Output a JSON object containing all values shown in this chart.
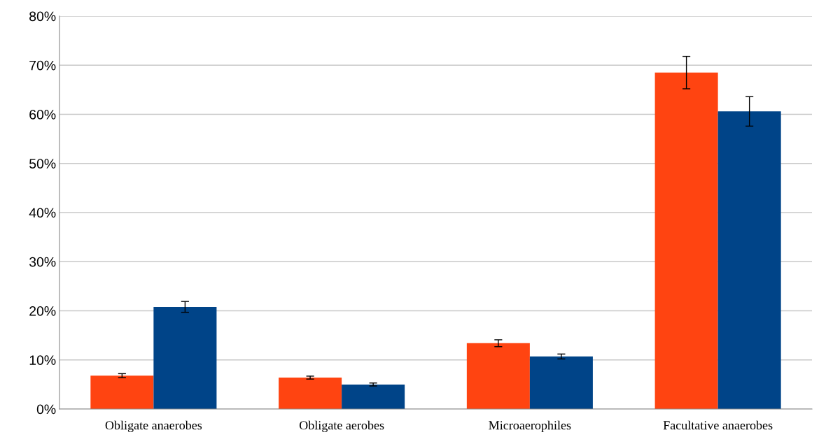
{
  "chart_data": {
    "type": "bar",
    "categories": [
      "Obligate anaerobes",
      "Obligate aerobes",
      "Microaerophiles",
      "Facultative anaerobes"
    ],
    "series": [
      {
        "color": "#ff4411",
        "values": [
          6.8,
          6.4,
          13.4,
          68.5
        ],
        "errors": [
          0.4,
          0.3,
          0.7,
          3.3
        ]
      },
      {
        "color": "#004488",
        "values": [
          20.8,
          5.0,
          10.7,
          60.6
        ],
        "errors": [
          1.1,
          0.3,
          0.5,
          3.0
        ]
      }
    ],
    "ylim": [
      0,
      80
    ],
    "yticks": [
      {
        "value": 0,
        "label": "0%"
      },
      {
        "value": 10,
        "label": "10%"
      },
      {
        "value": 20,
        "label": "20%"
      },
      {
        "value": 30,
        "label": "30%"
      },
      {
        "value": 40,
        "label": "40%"
      },
      {
        "value": 50,
        "label": "50%"
      },
      {
        "value": 60,
        "label": "60%"
      },
      {
        "value": 70,
        "label": "70%"
      },
      {
        "value": 80,
        "label": "80%"
      }
    ],
    "grid": "y",
    "legend": false
  }
}
